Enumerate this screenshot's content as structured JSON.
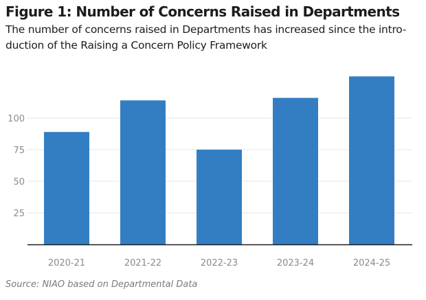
{
  "header": {
    "title": "Figure 1: Number of Concerns Raised in Departments",
    "subtitle_line1": "The number of concerns raised in Departments has increased since the intro-",
    "subtitle_line2": "duction of the Raising a Concern Policy Framework"
  },
  "footer": {
    "source": "Source: NIAO based on Departmental Data"
  },
  "chart_data": {
    "type": "bar",
    "title": "Figure 1: Number of Concerns Raised in Departments",
    "xlabel": "",
    "ylabel": "",
    "categories": [
      "2020-21",
      "2021-22",
      "2022-23",
      "2023-24",
      "2024-25"
    ],
    "values": [
      89,
      114,
      75,
      116,
      133
    ],
    "ylim": [
      0,
      140
    ],
    "yticks": [
      25,
      50,
      75,
      100
    ],
    "ytick_labels": [
      "25",
      "50",
      "75",
      "100"
    ],
    "grid": true,
    "legend": "none",
    "bar_color": "#337ec2",
    "grid_color": "#e6e6e6",
    "axis_color": "#1c1c1c",
    "tick_label_color": "#8a8a8a"
  }
}
